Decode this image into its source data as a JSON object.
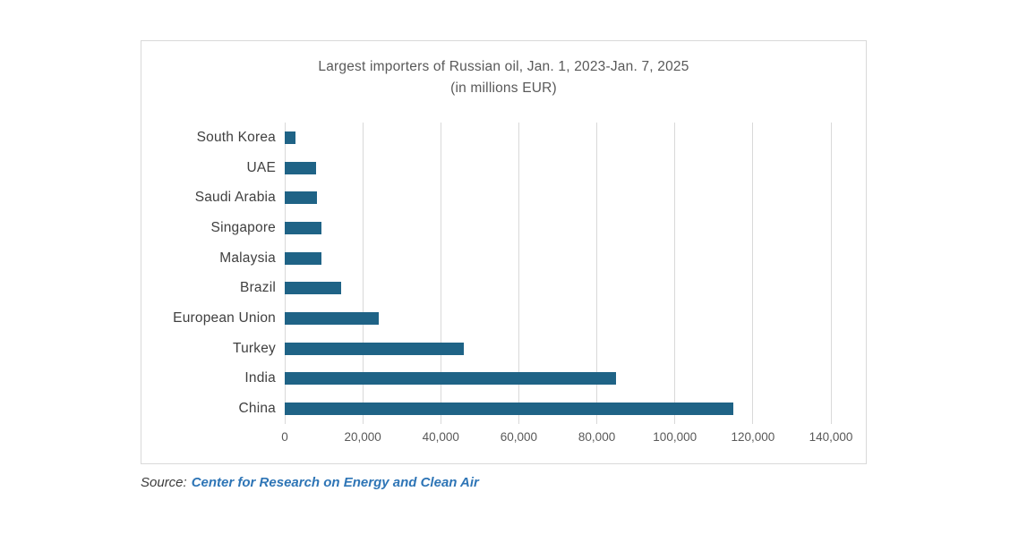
{
  "chart_data": {
    "type": "bar",
    "orientation": "horizontal",
    "title": "Largest importers of Russian oil, Jan. 1, 2023-Jan. 7, 2025",
    "subtitle": "(in millions EUR)",
    "categories": [
      "South Korea",
      "UAE",
      "Saudi Arabia",
      "Singapore",
      "Malaysia",
      "Brazil",
      "European Union",
      "Turkey",
      "India",
      "China"
    ],
    "values": [
      2800,
      8100,
      8300,
      9400,
      9500,
      14400,
      24000,
      46000,
      85000,
      115000
    ],
    "xlabel": "",
    "ylabel": "",
    "xlim": [
      0,
      140000
    ],
    "x_ticks": [
      {
        "value": 0,
        "label": "0"
      },
      {
        "value": 20000,
        "label": "20,000"
      },
      {
        "value": 40000,
        "label": "40,000"
      },
      {
        "value": 60000,
        "label": "60,000"
      },
      {
        "value": 80000,
        "label": "80,000"
      },
      {
        "value": 100000,
        "label": "100,000"
      },
      {
        "value": 120000,
        "label": "120,000"
      },
      {
        "value": 140000,
        "label": "140,000"
      }
    ],
    "grid": true,
    "legend": "none",
    "colors": {
      "bar": "#1f6386",
      "gridline": "#d9d9d9",
      "title": "#595959",
      "category_label": "#404040",
      "tick_label": "#595959",
      "card_border": "#d9d9d9"
    }
  },
  "source": {
    "prefix": "Source:",
    "link_text": "Center for Research on Energy and Clean Air",
    "link_color": "#2e75b6"
  }
}
